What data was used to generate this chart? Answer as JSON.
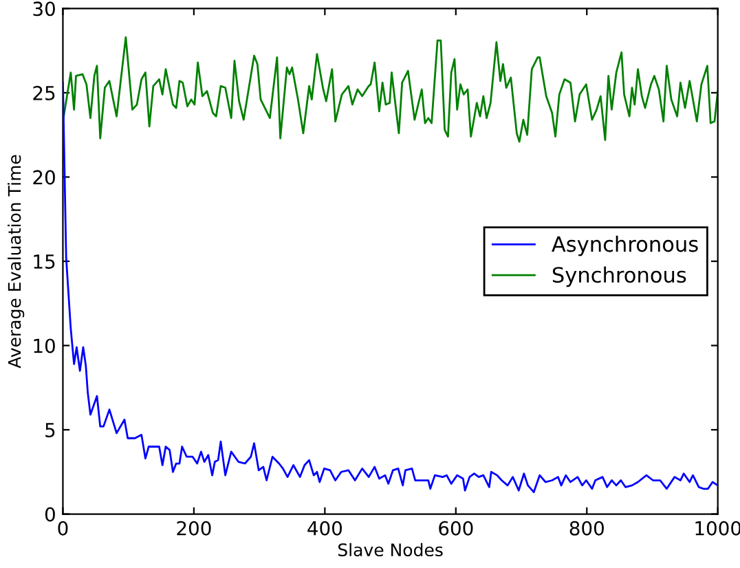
{
  "chart_data": {
    "type": "line",
    "xlabel": "Slave Nodes",
    "ylabel": "Average Evaluation Time",
    "xlim": [
      0,
      1000
    ],
    "ylim": [
      0,
      30
    ],
    "xticks": [
      0,
      200,
      400,
      600,
      800,
      1000
    ],
    "yticks": [
      0,
      5,
      10,
      15,
      20,
      25,
      30
    ],
    "grid": false,
    "legend": "center right",
    "marker": "none",
    "line_style": "solid",
    "series": [
      {
        "name": "Asynchronous",
        "color": "#0000ff",
        "x": [
          0,
          5,
          12,
          17,
          21,
          26,
          31,
          35,
          38,
          42,
          52,
          57,
          62,
          71,
          82,
          94,
          99,
          110,
          120,
          126,
          131,
          147,
          152,
          157,
          163,
          168,
          173,
          178,
          182,
          189,
          198,
          205,
          211,
          216,
          222,
          228,
          232,
          237,
          241,
          248,
          257,
          268,
          278,
          287,
          292,
          299,
          306,
          311,
          320,
          330,
          336,
          343,
          352,
          362,
          369,
          376,
          383,
          388,
          392,
          399,
          408,
          416,
          425,
          436,
          446,
          457,
          467,
          476,
          483,
          492,
          497,
          504,
          512,
          519,
          523,
          533,
          538,
          548,
          558,
          561,
          568,
          580,
          586,
          593,
          602,
          611,
          614,
          621,
          628,
          635,
          642,
          651,
          654,
          663,
          670,
          679,
          687,
          696,
          704,
          710,
          719,
          728,
          737,
          747,
          756,
          761,
          768,
          775,
          786,
          793,
          799,
          808,
          813,
          824,
          831,
          838,
          845,
          852,
          859,
          869,
          878,
          891,
          901,
          912,
          922,
          934,
          943,
          948,
          957,
          962,
          971,
          978,
          985,
          992,
          1000
        ],
        "values": [
          25.6,
          15.2,
          11.0,
          8.9,
          9.9,
          8.5,
          9.9,
          8.8,
          7.2,
          5.9,
          7.0,
          5.2,
          5.2,
          6.2,
          4.8,
          5.6,
          4.5,
          4.5,
          4.7,
          3.3,
          4.0,
          4.0,
          2.9,
          4.0,
          3.8,
          2.5,
          3.0,
          3.0,
          4.0,
          3.4,
          3.4,
          3.0,
          3.7,
          3.1,
          3.5,
          2.3,
          3.1,
          3.2,
          4.3,
          2.3,
          3.7,
          3.1,
          3.0,
          3.4,
          4.2,
          2.6,
          2.8,
          2.0,
          3.4,
          3.0,
          2.7,
          2.2,
          2.9,
          2.2,
          2.9,
          3.2,
          2.3,
          2.5,
          1.9,
          2.7,
          2.6,
          2.0,
          2.5,
          2.6,
          2.0,
          2.7,
          2.2,
          2.8,
          2.1,
          2.3,
          1.8,
          2.6,
          2.7,
          1.7,
          2.6,
          2.7,
          2.0,
          2.0,
          2.0,
          1.5,
          2.3,
          2.2,
          2.3,
          1.8,
          2.3,
          2.1,
          1.4,
          2.2,
          2.4,
          2.2,
          2.3,
          1.6,
          2.5,
          2.3,
          2.0,
          1.7,
          2.2,
          1.4,
          2.4,
          1.7,
          1.3,
          2.3,
          1.9,
          2.0,
          2.2,
          1.7,
          2.3,
          1.9,
          2.2,
          1.7,
          2.0,
          1.5,
          2.0,
          2.2,
          1.6,
          2.0,
          1.7,
          2.0,
          1.6,
          1.7,
          1.9,
          2.3,
          2.0,
          2.0,
          1.5,
          2.2,
          2.0,
          2.4,
          1.9,
          2.3,
          1.6,
          1.5,
          1.5,
          1.9,
          1.7
        ]
      },
      {
        "name": "Synchronous",
        "color": "#008000",
        "x": [
          0,
          12,
          17,
          20,
          30,
          36,
          42,
          48,
          52,
          57,
          64,
          71,
          82,
          96,
          106,
          113,
          120,
          126,
          132,
          138,
          147,
          152,
          157,
          168,
          173,
          178,
          183,
          190,
          196,
          201,
          206,
          213,
          220,
          229,
          234,
          241,
          248,
          257,
          262,
          269,
          276,
          284,
          292,
          297,
          302,
          316,
          327,
          332,
          342,
          346,
          350,
          359,
          367,
          376,
          380,
          388,
          397,
          402,
          411,
          416,
          426,
          436,
          442,
          450,
          457,
          467,
          470,
          476,
          483,
          488,
          493,
          499,
          502,
          513,
          518,
          527,
          537,
          548,
          553,
          558,
          563,
          572,
          577,
          583,
          588,
          593,
          598,
          602,
          607,
          612,
          618,
          623,
          632,
          637,
          642,
          647,
          653,
          662,
          668,
          672,
          677,
          684,
          693,
          697,
          703,
          709,
          716,
          725,
          728,
          738,
          747,
          752,
          758,
          766,
          775,
          782,
          789,
          799,
          808,
          815,
          821,
          828,
          833,
          838,
          845,
          853,
          857,
          865,
          869,
          873,
          878,
          884,
          889,
          898,
          903,
          910,
          917,
          922,
          929,
          938,
          943,
          950,
          957,
          968,
          975,
          984,
          989,
          995,
          1000
        ],
        "values": [
          23.3,
          26.2,
          24.0,
          26.0,
          26.1,
          25.5,
          23.5,
          26.0,
          26.6,
          22.3,
          25.3,
          25.7,
          23.6,
          28.3,
          24.0,
          24.3,
          25.8,
          26.2,
          23.0,
          25.4,
          25.8,
          24.9,
          26.4,
          24.3,
          24.1,
          25.7,
          25.6,
          24.2,
          24.6,
          24.3,
          26.8,
          24.8,
          25.1,
          23.8,
          23.6,
          25.4,
          25.3,
          23.5,
          26.9,
          24.5,
          23.4,
          25.3,
          27.2,
          26.7,
          24.6,
          23.5,
          27.1,
          22.3,
          26.5,
          26.1,
          26.5,
          24.6,
          22.6,
          25.4,
          24.6,
          27.3,
          25.3,
          24.5,
          26.4,
          23.3,
          24.9,
          25.4,
          24.3,
          25.2,
          24.8,
          25.4,
          25.5,
          26.8,
          23.9,
          25.6,
          24.3,
          24.4,
          26.2,
          22.6,
          25.6,
          26.3,
          23.4,
          25.2,
          23.2,
          23.5,
          23.2,
          28.1,
          28.1,
          22.8,
          22.4,
          26.2,
          27.0,
          24.0,
          25.5,
          24.9,
          25.2,
          22.4,
          24.4,
          23.6,
          24.8,
          23.5,
          24.4,
          28.0,
          25.7,
          26.7,
          25.3,
          25.9,
          22.6,
          22.1,
          23.4,
          22.5,
          26.4,
          27.1,
          27.1,
          24.8,
          23.8,
          22.4,
          24.9,
          25.8,
          25.6,
          23.3,
          24.9,
          25.5,
          23.4,
          24.0,
          24.8,
          22.2,
          26.0,
          24.0,
          26.2,
          27.4,
          24.9,
          23.6,
          25.3,
          24.3,
          26.4,
          24.8,
          24.1,
          25.5,
          26.0,
          25.2,
          23.3,
          26.6,
          24.6,
          23.6,
          25.6,
          24.1,
          25.7,
          23.3,
          25.5,
          26.6,
          23.2,
          23.3,
          25.1
        ]
      }
    ]
  }
}
